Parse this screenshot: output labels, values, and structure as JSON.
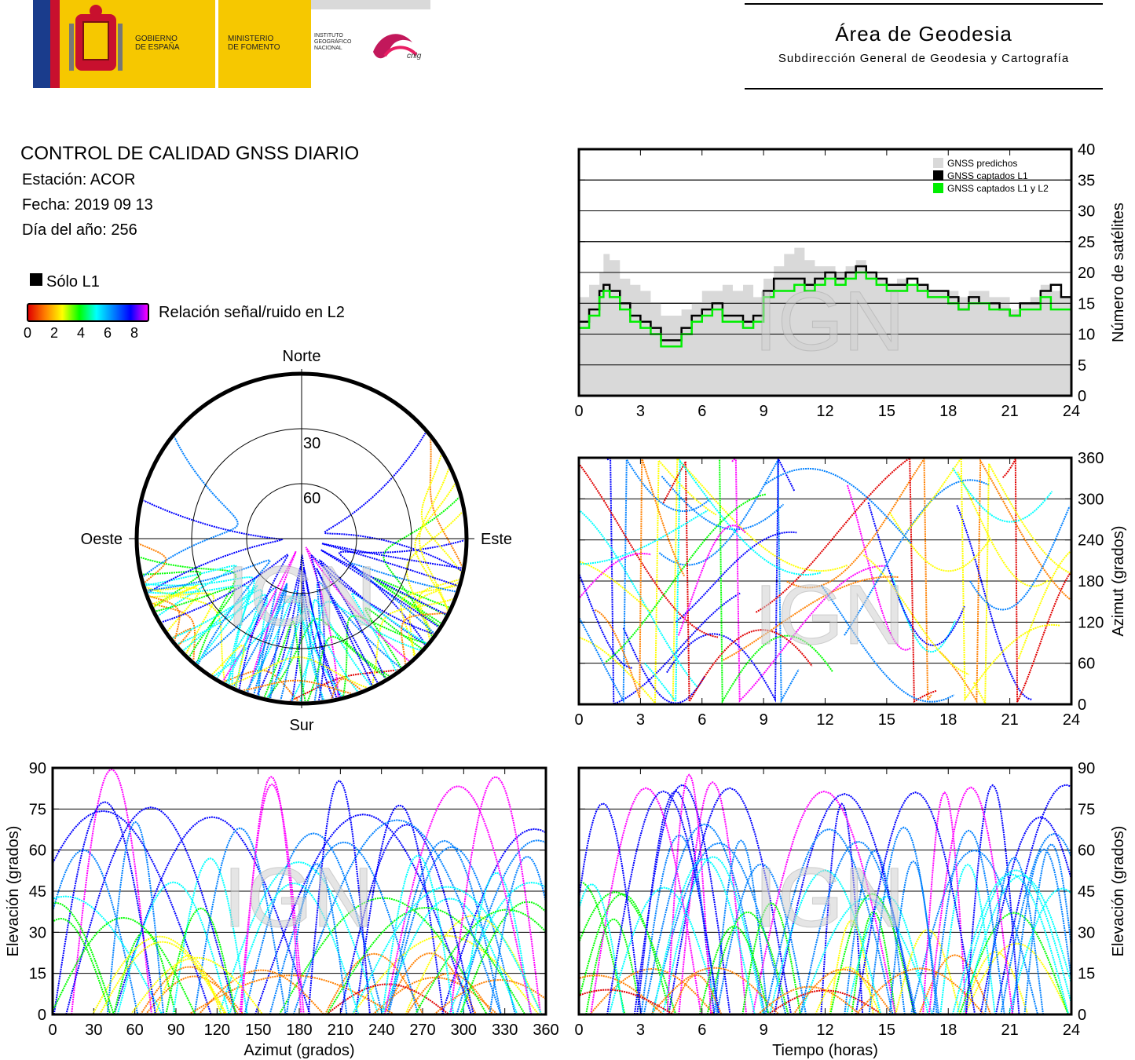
{
  "header": {
    "gob": "GOBIERNO\nDE ESPAÑA",
    "min": "MINISTERIO\nDE FOMENTO",
    "ign": "INSTITUTO\nGEOGRÁFICO\nNACIONAL",
    "cnig": "cnig",
    "area_title": "Área de Geodesia",
    "area_subtitle": "Subdirección General de Geodesia y Cartografía"
  },
  "info": {
    "title": "CONTROL DE CALIDAD GNSS DIARIO",
    "station": "Estación: ACOR",
    "date": "Fecha: 2019 09 13",
    "doy": "Día del año: 256"
  },
  "legend": {
    "l1_only": "Sólo L1",
    "snr_label": "Relación señal/ruido en L2",
    "snr_ticks": [
      "0",
      "2",
      "4",
      "6",
      "8"
    ]
  },
  "watermark": "IGN",
  "colors": {
    "snr_scale": [
      "#e00000",
      "#ff8000",
      "#ffff00",
      "#00ff00",
      "#00ffff",
      "#0080ff",
      "#0000ff",
      "#ff00ff"
    ],
    "predicted": "#d9d9d9",
    "l1": "#000000",
    "l1l2": "#00ee00"
  },
  "chart_data": [
    {
      "type": "area",
      "id": "satellite-count",
      "ylabel": "Número de satélites",
      "xlim": [
        0,
        24
      ],
      "ylim": [
        0,
        40
      ],
      "xticks": [
        "0",
        "3",
        "6",
        "9",
        "12",
        "15",
        "18",
        "21",
        "24"
      ],
      "yticks": [
        "0",
        "5",
        "10",
        "15",
        "20",
        "25",
        "30",
        "35",
        "40"
      ],
      "grid": true,
      "legend_position": "top-right",
      "series": [
        {
          "name": "GNSS predichos",
          "x": [
            0,
            0.5,
            1,
            1.2,
            1.5,
            2,
            2.5,
            3,
            3.5,
            4,
            4.5,
            5,
            5.5,
            6,
            6.5,
            7,
            7.5,
            8,
            8.5,
            9,
            9.5,
            10,
            10.5,
            11,
            11.5,
            12,
            12.5,
            13,
            13.5,
            14,
            14.5,
            15,
            15.5,
            16,
            16.5,
            17,
            17.5,
            18,
            18.5,
            19,
            19.5,
            20,
            20.5,
            21,
            21.5,
            22,
            22.5,
            23,
            23.5,
            24
          ],
          "values": [
            16,
            18,
            20,
            23,
            22,
            19,
            18,
            17,
            15,
            13,
            13,
            14,
            15,
            17,
            17,
            18,
            17,
            18,
            16,
            19,
            21,
            23,
            24,
            22,
            21,
            21,
            20,
            21,
            22,
            20,
            19,
            18,
            19,
            18,
            18,
            17,
            17,
            17,
            16,
            17,
            17,
            16,
            16,
            14,
            15,
            16,
            18,
            17,
            16,
            17
          ]
        },
        {
          "name": "GNSS captados L1",
          "x": [
            0,
            0.5,
            1,
            1.2,
            1.5,
            2,
            2.5,
            3,
            3.5,
            4,
            4.5,
            5,
            5.5,
            6,
            6.5,
            7,
            7.5,
            8,
            8.5,
            9,
            9.5,
            10,
            10.5,
            11,
            11.5,
            12,
            12.5,
            13,
            13.5,
            14,
            14.5,
            15,
            15.5,
            16,
            16.5,
            17,
            17.5,
            18,
            18.5,
            19,
            19.5,
            20,
            20.5,
            21,
            21.5,
            22,
            22.5,
            23,
            23.5,
            24
          ],
          "values": [
            12,
            14,
            17,
            18,
            17,
            15,
            13,
            12,
            11,
            9,
            9,
            11,
            13,
            14,
            15,
            13,
            13,
            12,
            13,
            17,
            19,
            19,
            19,
            18,
            19,
            20,
            19,
            20,
            21,
            20,
            19,
            18,
            18,
            19,
            18,
            17,
            17,
            16,
            14,
            16,
            15,
            15,
            14,
            13,
            15,
            15,
            17,
            18,
            16,
            18
          ]
        },
        {
          "name": "GNSS captados L1 y L2",
          "x": [
            0,
            0.5,
            1,
            1.2,
            1.5,
            2,
            2.5,
            3,
            3.5,
            4,
            4.5,
            5,
            5.5,
            6,
            6.5,
            7,
            7.5,
            8,
            8.5,
            9,
            9.5,
            10,
            10.5,
            11,
            11.5,
            12,
            12.5,
            13,
            13.5,
            14,
            14.5,
            15,
            15.5,
            16,
            16.5,
            17,
            17.5,
            18,
            18.5,
            19,
            19.5,
            20,
            20.5,
            21,
            21.5,
            22,
            22.5,
            23,
            23.5,
            24
          ],
          "values": [
            11,
            13,
            16,
            17,
            16,
            14,
            12,
            11,
            10,
            8,
            8,
            10,
            12,
            13,
            14,
            12,
            12,
            11,
            12,
            16,
            17,
            17,
            18,
            17,
            18,
            19,
            18,
            19,
            20,
            19,
            18,
            17,
            17,
            18,
            17,
            16,
            16,
            15,
            14,
            15,
            15,
            14,
            14,
            13,
            14,
            14,
            16,
            14,
            14,
            17
          ]
        }
      ]
    },
    {
      "type": "scatter",
      "id": "azimuth-vs-time",
      "ylabel": "Azimut (grados)",
      "xlim": [
        0,
        24
      ],
      "ylim": [
        0,
        360
      ],
      "xticks": [
        "0",
        "3",
        "6",
        "9",
        "12",
        "15",
        "18",
        "21",
        "24"
      ],
      "yticks": [
        "0",
        "60",
        "120",
        "180",
        "240",
        "300",
        "360"
      ],
      "grid": true
    },
    {
      "type": "scatter",
      "id": "elevation-vs-azimuth",
      "xlabel": "Azimut (grados)",
      "ylabel": "Elevación (grados)",
      "xlim": [
        0,
        360
      ],
      "ylim": [
        0,
        90
      ],
      "xticks": [
        "0",
        "30",
        "60",
        "90",
        "120",
        "150",
        "180",
        "210",
        "240",
        "270",
        "300",
        "330",
        "360"
      ],
      "yticks": [
        "0",
        "15",
        "30",
        "45",
        "60",
        "75",
        "90"
      ],
      "grid": true
    },
    {
      "type": "scatter",
      "id": "elevation-vs-time",
      "xlabel": "Tiempo (horas)",
      "ylabel": "Elevación (grados)",
      "xlim": [
        0,
        24
      ],
      "ylim": [
        0,
        90
      ],
      "xticks": [
        "0",
        "3",
        "6",
        "9",
        "12",
        "15",
        "18",
        "21",
        "24"
      ],
      "yticks": [
        "0",
        "15",
        "30",
        "45",
        "60",
        "75",
        "90"
      ],
      "grid": true
    },
    {
      "type": "scatter",
      "id": "skyplot",
      "labels": {
        "north": "Norte",
        "south": "Sur",
        "east": "Este",
        "west": "Oeste"
      },
      "rings": [
        "30",
        "60"
      ]
    }
  ]
}
